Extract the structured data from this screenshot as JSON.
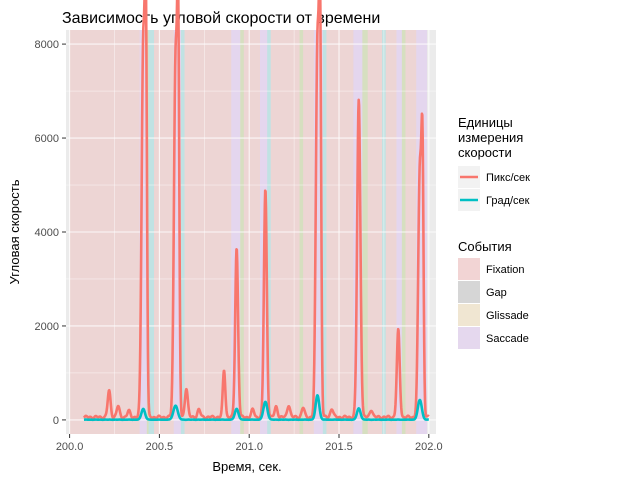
{
  "chart_data": {
    "type": "line",
    "title": "Зависимость угловой скорости от времени",
    "xlabel": "Время, сек.",
    "ylabel": "Угловая скорость",
    "xlim": [
      199.98,
      202.04
    ],
    "ylim": [
      -300,
      8300
    ],
    "x_ticks": [
      200.0,
      200.5,
      201.0,
      201.5,
      202.0
    ],
    "x_tick_labels": [
      "200.0",
      "200.5",
      "201.0",
      "201.5",
      "202.0"
    ],
    "y_ticks": [
      0,
      2000,
      4000,
      6000,
      8000
    ],
    "y_tick_labels": [
      "0",
      "2000",
      "4000",
      "6000",
      "8000"
    ],
    "grid": true,
    "legend_position": "right",
    "series_legend_title": "Единицы измерения скорости",
    "series_legend_title_lines": [
      "Единицы",
      "измерения",
      "скорости"
    ],
    "series": [
      {
        "name": "Пикс/сек",
        "color": "#F8766D",
        "baseline": 60,
        "peaks": [
          {
            "x": 200.22,
            "y": 560,
            "w": 0.008
          },
          {
            "x": 200.27,
            "y": 230,
            "w": 0.008
          },
          {
            "x": 200.33,
            "y": 130,
            "w": 0.008
          },
          {
            "x": 200.41,
            "y": 7900,
            "w": 0.009
          },
          {
            "x": 200.425,
            "y": 7400,
            "w": 0.006
          },
          {
            "x": 200.59,
            "y": 7600,
            "w": 0.009
          },
          {
            "x": 200.605,
            "y": 7200,
            "w": 0.006
          },
          {
            "x": 200.65,
            "y": 620,
            "w": 0.008
          },
          {
            "x": 200.72,
            "y": 160,
            "w": 0.008
          },
          {
            "x": 200.86,
            "y": 1000,
            "w": 0.007
          },
          {
            "x": 200.93,
            "y": 3600,
            "w": 0.008
          },
          {
            "x": 201.02,
            "y": 160,
            "w": 0.008
          },
          {
            "x": 201.09,
            "y": 4850,
            "w": 0.008
          },
          {
            "x": 201.15,
            "y": 220,
            "w": 0.008
          },
          {
            "x": 201.22,
            "y": 260,
            "w": 0.008
          },
          {
            "x": 201.3,
            "y": 200,
            "w": 0.008
          },
          {
            "x": 201.38,
            "y": 7950,
            "w": 0.009
          },
          {
            "x": 201.395,
            "y": 7300,
            "w": 0.006
          },
          {
            "x": 201.46,
            "y": 180,
            "w": 0.008
          },
          {
            "x": 201.61,
            "y": 6750,
            "w": 0.009
          },
          {
            "x": 201.68,
            "y": 160,
            "w": 0.008
          },
          {
            "x": 201.83,
            "y": 1850,
            "w": 0.008
          },
          {
            "x": 201.95,
            "y": 5250,
            "w": 0.009
          },
          {
            "x": 201.965,
            "y": 4900,
            "w": 0.006
          }
        ]
      },
      {
        "name": "Град/сек",
        "color": "#00BFC4",
        "baseline": 5,
        "peaks": [
          {
            "x": 200.41,
            "y": 230,
            "w": 0.01
          },
          {
            "x": 200.59,
            "y": 300,
            "w": 0.012
          },
          {
            "x": 200.93,
            "y": 230,
            "w": 0.01
          },
          {
            "x": 201.09,
            "y": 380,
            "w": 0.011
          },
          {
            "x": 201.38,
            "y": 520,
            "w": 0.01
          },
          {
            "x": 201.61,
            "y": 240,
            "w": 0.01
          },
          {
            "x": 201.95,
            "y": 420,
            "w": 0.011
          }
        ]
      }
    ],
    "series_x_range": [
      200.08,
      202.0
    ],
    "events_legend_title": "События",
    "event_types": [
      {
        "name": "Fixation",
        "color": "#F8766D"
      },
      {
        "name": "Gap",
        "color": "#7CAE00"
      },
      {
        "name": "Glissade",
        "color": "#00BFC4"
      },
      {
        "name": "Saccade",
        "color": "#C77CFF"
      }
    ],
    "event_legend_colors": [
      "#f2d4d4",
      "#d6d6d6",
      "#f0e6d2",
      "#e5d8ee"
    ],
    "event_band_opacity": 0.18,
    "events": [
      {
        "start": 200.0,
        "end": 200.39,
        "type": "Fixation"
      },
      {
        "start": 200.39,
        "end": 200.43,
        "type": "Saccade"
      },
      {
        "start": 200.43,
        "end": 200.44,
        "type": "Gap"
      },
      {
        "start": 200.44,
        "end": 200.47,
        "type": "Glissade"
      },
      {
        "start": 200.47,
        "end": 200.58,
        "type": "Fixation"
      },
      {
        "start": 200.58,
        "end": 200.62,
        "type": "Saccade"
      },
      {
        "start": 200.62,
        "end": 200.64,
        "type": "Glissade"
      },
      {
        "start": 200.64,
        "end": 200.9,
        "type": "Fixation"
      },
      {
        "start": 200.9,
        "end": 200.95,
        "type": "Saccade"
      },
      {
        "start": 200.95,
        "end": 200.97,
        "type": "Gap"
      },
      {
        "start": 200.97,
        "end": 201.06,
        "type": "Fixation"
      },
      {
        "start": 201.06,
        "end": 201.1,
        "type": "Saccade"
      },
      {
        "start": 201.1,
        "end": 201.12,
        "type": "Glissade"
      },
      {
        "start": 201.12,
        "end": 201.28,
        "type": "Fixation"
      },
      {
        "start": 201.28,
        "end": 201.3,
        "type": "Gap"
      },
      {
        "start": 201.3,
        "end": 201.36,
        "type": "Fixation"
      },
      {
        "start": 201.36,
        "end": 201.41,
        "type": "Saccade"
      },
      {
        "start": 201.41,
        "end": 201.43,
        "type": "Glissade"
      },
      {
        "start": 201.43,
        "end": 201.58,
        "type": "Fixation"
      },
      {
        "start": 201.58,
        "end": 201.63,
        "type": "Saccade"
      },
      {
        "start": 201.63,
        "end": 201.66,
        "type": "Gap"
      },
      {
        "start": 201.66,
        "end": 201.74,
        "type": "Fixation"
      },
      {
        "start": 201.74,
        "end": 201.76,
        "type": "Glissade"
      },
      {
        "start": 201.76,
        "end": 201.82,
        "type": "Fixation"
      },
      {
        "start": 201.82,
        "end": 201.85,
        "type": "Saccade"
      },
      {
        "start": 201.85,
        "end": 201.87,
        "type": "Gap"
      },
      {
        "start": 201.87,
        "end": 201.93,
        "type": "Fixation"
      },
      {
        "start": 201.93,
        "end": 201.99,
        "type": "Saccade"
      }
    ]
  }
}
